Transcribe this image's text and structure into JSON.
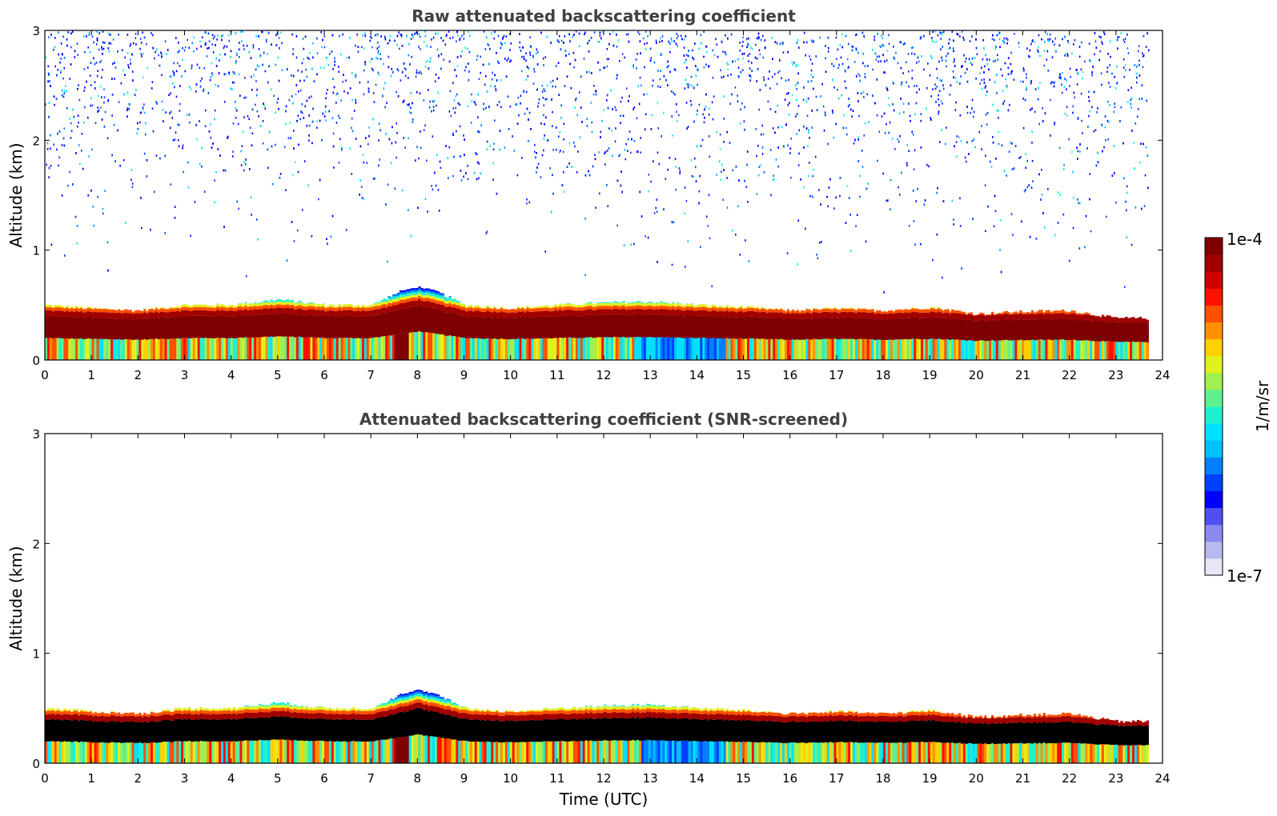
{
  "chart_data": [
    {
      "type": "heatmap",
      "title": "Raw attenuated backscattering coefficient",
      "xlabel": "",
      "ylabel": "Altitude (km)",
      "xlim": [
        0,
        24
      ],
      "ylim": [
        0,
        3
      ],
      "xticks": [
        "0",
        "1",
        "2",
        "3",
        "4",
        "5",
        "6",
        "7",
        "8",
        "9",
        "10",
        "11",
        "12",
        "13",
        "14",
        "15",
        "16",
        "17",
        "18",
        "19",
        "20",
        "21",
        "22",
        "23",
        "24"
      ],
      "yticks": [
        "0",
        "1",
        "2",
        "3"
      ],
      "data_end_hour": 23.7,
      "layer_top_km": [
        [
          0,
          0.5
        ],
        [
          1,
          0.47
        ],
        [
          2,
          0.45
        ],
        [
          3,
          0.5
        ],
        [
          4,
          0.5
        ],
        [
          5,
          0.55
        ],
        [
          6,
          0.5
        ],
        [
          7,
          0.5
        ],
        [
          8,
          0.7
        ],
        [
          9,
          0.5
        ],
        [
          10,
          0.47
        ],
        [
          11,
          0.5
        ],
        [
          12,
          0.52
        ],
        [
          13,
          0.53
        ],
        [
          14,
          0.5
        ],
        [
          15,
          0.48
        ],
        [
          16,
          0.45
        ],
        [
          17,
          0.47
        ],
        [
          18,
          0.45
        ],
        [
          19,
          0.48
        ],
        [
          20,
          0.42
        ],
        [
          21,
          0.44
        ],
        [
          22,
          0.45
        ],
        [
          23,
          0.38
        ],
        [
          23.7,
          0.38
        ]
      ],
      "core_band_km": [
        0.2,
        0.4
      ],
      "noise_above_layer": true
    },
    {
      "type": "heatmap",
      "title": "Attenuated backscattering coefficient (SNR-screened)",
      "xlabel": "Time (UTC)",
      "ylabel": "Altitude (km)",
      "xlim": [
        0,
        24
      ],
      "ylim": [
        0,
        3
      ],
      "xticks": [
        "0",
        "1",
        "2",
        "3",
        "4",
        "5",
        "6",
        "7",
        "8",
        "9",
        "10",
        "11",
        "12",
        "13",
        "14",
        "15",
        "16",
        "17",
        "18",
        "19",
        "20",
        "21",
        "22",
        "23",
        "24"
      ],
      "yticks": [
        "0",
        "1",
        "2",
        "3"
      ],
      "data_end_hour": 23.7,
      "core_band_km": [
        0.2,
        0.4
      ],
      "noise_above_layer": false
    }
  ],
  "colorbar": {
    "label": "1/m/sr",
    "max_label": "1e-4",
    "min_label": "1e-7",
    "scale": "log",
    "range": [
      1e-07,
      0.0001
    ],
    "colors": [
      "#e6e6f7",
      "#b9b9f0",
      "#8a8af0",
      "#5050f0",
      "#0000ff",
      "#0040ff",
      "#0080ff",
      "#00c0ff",
      "#00e0ff",
      "#20f0d0",
      "#60f090",
      "#a0f050",
      "#e0f020",
      "#ffd000",
      "#ff9000",
      "#ff5000",
      "#ff1000",
      "#d00000",
      "#a00000",
      "#7f0000"
    ]
  }
}
